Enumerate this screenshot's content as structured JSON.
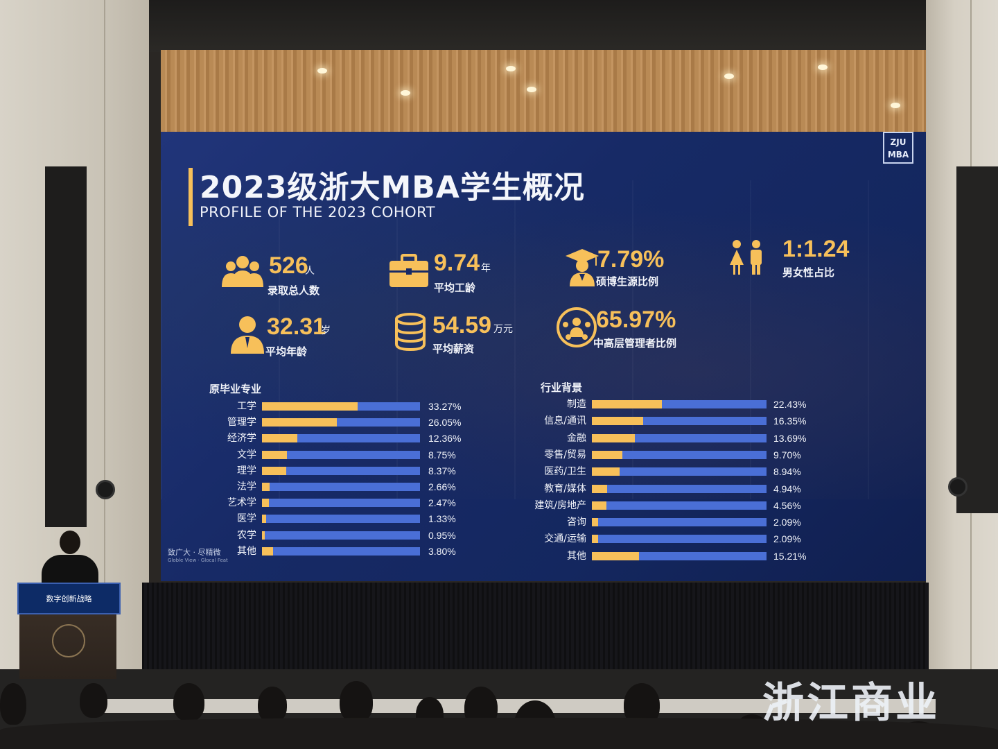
{
  "title_cn": "2023级浙大MBA学生概况",
  "title_en": "PROFILE OF THE 2023 COHORT",
  "logo": {
    "line1": "ZJU",
    "line2": "MBA"
  },
  "slogan": {
    "cn": "致广大 · 尽精微",
    "en": "Globle View · Glocal Feat"
  },
  "stats": [
    {
      "value": "526",
      "unit": "人",
      "label": "录取总人数",
      "icon": "people-group-icon"
    },
    {
      "value": "9.74",
      "unit": "年",
      "label": "平均工龄",
      "icon": "briefcase-icon"
    },
    {
      "value": "7.79%",
      "unit": "",
      "label": "硕博生源比例",
      "icon": "graduate-icon"
    },
    {
      "value": "1:1.24",
      "unit": "",
      "label": "男女性占比",
      "icon": "male-female-icon"
    },
    {
      "value": "32.31",
      "unit": "岁",
      "label": "平均年龄",
      "icon": "businessman-icon"
    },
    {
      "value": "54.59",
      "unit": "万元",
      "label": "平均薪资",
      "icon": "coin-stack-icon"
    },
    {
      "value": "65.97%",
      "unit": "",
      "label": "中高层管理者比例",
      "icon": "manager-network-icon"
    }
  ],
  "chart_data": [
    {
      "type": "bar",
      "title": "原毕业专业",
      "categories": [
        "工学",
        "管理学",
        "经济学",
        "文学",
        "理学",
        "法学",
        "艺术学",
        "医学",
        "农学",
        "其他"
      ],
      "values": [
        33.27,
        26.05,
        12.36,
        8.75,
        8.37,
        2.66,
        2.47,
        1.33,
        0.95,
        3.8
      ],
      "value_labels": [
        "33.27%",
        "26.05%",
        "12.36%",
        "8.75%",
        "8.37%",
        "2.66%",
        "2.47%",
        "1.33%",
        "0.95%",
        "3.80%"
      ],
      "xlim": [
        0,
        55
      ],
      "colors": {
        "fill": "#f7c05a",
        "track": "#4a6fd6"
      }
    },
    {
      "type": "bar",
      "title": "行业背景",
      "categories": [
        "制造",
        "信息/通讯",
        "金融",
        "零售/贸易",
        "医药/卫生",
        "教育/媒体",
        "建筑/房地产",
        "咨询",
        "交通/运输",
        "其他"
      ],
      "values": [
        22.43,
        16.35,
        13.69,
        9.7,
        8.94,
        4.94,
        4.56,
        2.09,
        2.09,
        15.21
      ],
      "value_labels": [
        "22.43%",
        "16.35%",
        "13.69%",
        "9.70%",
        "8.94%",
        "4.94%",
        "4.56%",
        "2.09%",
        "2.09%",
        "15.21%"
      ],
      "xlim": [
        0,
        56
      ],
      "colors": {
        "fill": "#f7c05a",
        "track": "#4a6fd6"
      }
    }
  ],
  "room_logo": "浙江商业",
  "podium_sign": "数字创新战略"
}
